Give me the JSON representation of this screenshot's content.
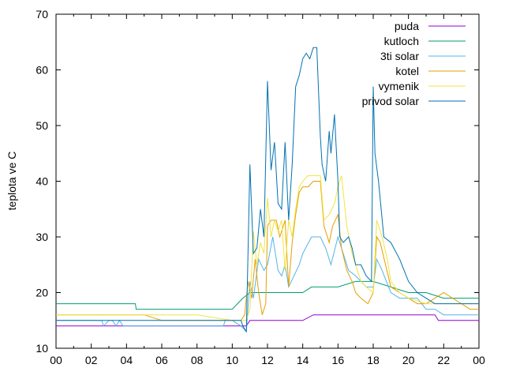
{
  "chart_data": {
    "type": "line",
    "title": "",
    "xlabel": "",
    "ylabel": "teplota ve C",
    "x_ticks": [
      "00",
      "02",
      "04",
      "06",
      "08",
      "10",
      "12",
      "14",
      "16",
      "18",
      "20",
      "22",
      "00"
    ],
    "y_ticks": [
      "10",
      "20",
      "30",
      "40",
      "50",
      "60",
      "70"
    ],
    "xlim": [
      0,
      24
    ],
    "ylim": [
      10,
      70
    ],
    "grid": false,
    "legend_position": "top-right",
    "series": [
      {
        "name": "puda",
        "color": "#9400d3",
        "x": [
          0,
          10,
          10.8,
          11,
          11.5,
          12,
          13,
          14,
          14.6,
          15,
          16,
          17,
          18,
          19,
          20,
          21,
          21.5,
          21.7,
          22,
          23,
          24
        ],
        "y": [
          14,
          14,
          14,
          15,
          15,
          15,
          15,
          15,
          16,
          16,
          16,
          16,
          16,
          16,
          16,
          16,
          16,
          15,
          15,
          15,
          15
        ]
      },
      {
        "name": "kutloch",
        "color": "#009e73",
        "x": [
          0,
          4.5,
          4.55,
          10,
          10.6,
          11,
          11.5,
          12,
          13,
          14,
          14.5,
          15,
          16,
          17,
          18,
          19,
          20,
          21,
          22,
          23,
          24
        ],
        "y": [
          18,
          18,
          17,
          17,
          19,
          20,
          20,
          20,
          20,
          20,
          21,
          21,
          21,
          22,
          22,
          21,
          20,
          20,
          19,
          19,
          19
        ]
      },
      {
        "name": "3ti solar",
        "color": "#56b4e9",
        "x": [
          0,
          0.5,
          1,
          2,
          2.6,
          2.7,
          3,
          3.2,
          3.4,
          3.6,
          3.8,
          4,
          5,
          6,
          8,
          9.5,
          9.6,
          10,
          10.5,
          10.8,
          11,
          11.2,
          11.5,
          11.8,
          12,
          12.3,
          12.6,
          12.8,
          13,
          13.2,
          13.5,
          13.8,
          14,
          14.5,
          15,
          15.3,
          15.6,
          16,
          16.3,
          16.6,
          17,
          17.3,
          17.6,
          18,
          18.2,
          18.5,
          19,
          19.5,
          20,
          20.5,
          21,
          21.5,
          22,
          22.5,
          23,
          23.5,
          24
        ],
        "y": [
          15,
          15,
          15,
          15,
          15,
          14,
          15,
          15,
          14,
          15,
          14,
          14,
          14,
          14,
          14,
          14,
          15,
          15,
          14,
          13,
          22,
          19,
          26,
          24,
          25,
          30,
          24,
          23,
          25,
          21,
          23,
          25,
          27,
          30,
          30,
          28,
          25,
          30,
          27,
          24,
          23,
          22,
          21,
          21,
          26,
          24,
          20,
          19,
          19,
          19,
          17,
          17,
          16,
          16,
          16,
          16,
          16
        ]
      },
      {
        "name": "kotel",
        "color": "#e69f00",
        "x": [
          0,
          4,
          5,
          6,
          8,
          10,
          10.5,
          10.7,
          10.9,
          11.1,
          11.3,
          11.5,
          11.7,
          11.9,
          12,
          12.2,
          12.5,
          12.7,
          13,
          13.2,
          13.4,
          13.6,
          13.8,
          14,
          14.3,
          14.6,
          15,
          15.2,
          15.5,
          15.7,
          16,
          16.2,
          16.5,
          16.8,
          17,
          17.3,
          17.7,
          18,
          18.2,
          18.4,
          18.7,
          19,
          19.5,
          20,
          20.5,
          21,
          21.5,
          22,
          22.5,
          23,
          23.5,
          24
        ],
        "y": [
          16,
          16,
          16,
          15,
          15,
          15,
          15,
          16,
          22,
          19,
          26,
          20,
          16,
          18,
          32,
          33,
          33,
          30,
          33,
          21,
          29,
          34,
          38,
          39,
          39,
          40,
          40,
          32,
          29,
          32,
          34,
          28,
          24,
          22,
          20,
          19,
          18,
          20,
          30,
          29,
          25,
          21,
          20,
          19,
          18,
          18,
          19,
          20,
          19,
          18,
          17,
          17
        ]
      },
      {
        "name": "vymenik",
        "color": "#f0e442",
        "x": [
          0,
          4,
          5,
          8,
          10,
          10.5,
          10.8,
          11,
          11.2,
          11.4,
          11.6,
          11.8,
          12,
          12.2,
          12.4,
          12.6,
          12.8,
          13,
          13.2,
          13.4,
          13.6,
          13.8,
          14,
          14.3,
          14.6,
          15,
          15.2,
          15.5,
          15.8,
          16,
          16.2,
          16.5,
          16.8,
          17,
          17.3,
          17.6,
          18,
          18.2,
          18.5,
          18.8,
          19,
          19.5,
          20,
          21,
          22,
          22.5,
          23,
          24
        ],
        "y": [
          16,
          16,
          16,
          16,
          15,
          15,
          15,
          17,
          31,
          25,
          29,
          27,
          37,
          30,
          33,
          31,
          33,
          24,
          33,
          30,
          35,
          39,
          40,
          41,
          41,
          41,
          33,
          34,
          36,
          39,
          41,
          32,
          27,
          25,
          22,
          21,
          20,
          33,
          30,
          26,
          22,
          20,
          19,
          18,
          18,
          18,
          18,
          18
        ]
      },
      {
        "name": "privod solar",
        "color": "#0072b2",
        "x": [
          0,
          10,
          10.5,
          10.6,
          10.8,
          11,
          11.2,
          11.4,
          11.6,
          11.8,
          12,
          12.2,
          12.4,
          12.6,
          12.8,
          13,
          13.2,
          13.4,
          13.6,
          13.8,
          14,
          14.2,
          14.4,
          14.6,
          14.8,
          15,
          15.1,
          15.3,
          15.5,
          15.6,
          15.8,
          16,
          16.1,
          16.3,
          16.6,
          16.8,
          17,
          17.3,
          17.6,
          17.9,
          18,
          18.1,
          18.3,
          18.6,
          19,
          19.5,
          20,
          20.5,
          21,
          21.5,
          22,
          23,
          24
        ],
        "y": [
          15,
          15,
          15,
          14,
          13,
          43,
          27,
          28,
          35,
          30,
          58,
          42,
          47,
          36,
          35,
          47,
          33,
          43,
          57,
          59,
          62,
          63,
          62,
          64,
          64,
          48,
          43,
          40,
          49,
          45,
          52,
          40,
          30,
          29,
          30,
          28,
          25,
          25,
          23,
          22,
          57,
          45,
          40,
          30,
          29,
          26,
          22,
          20,
          19,
          18,
          18,
          18,
          18
        ]
      }
    ]
  }
}
